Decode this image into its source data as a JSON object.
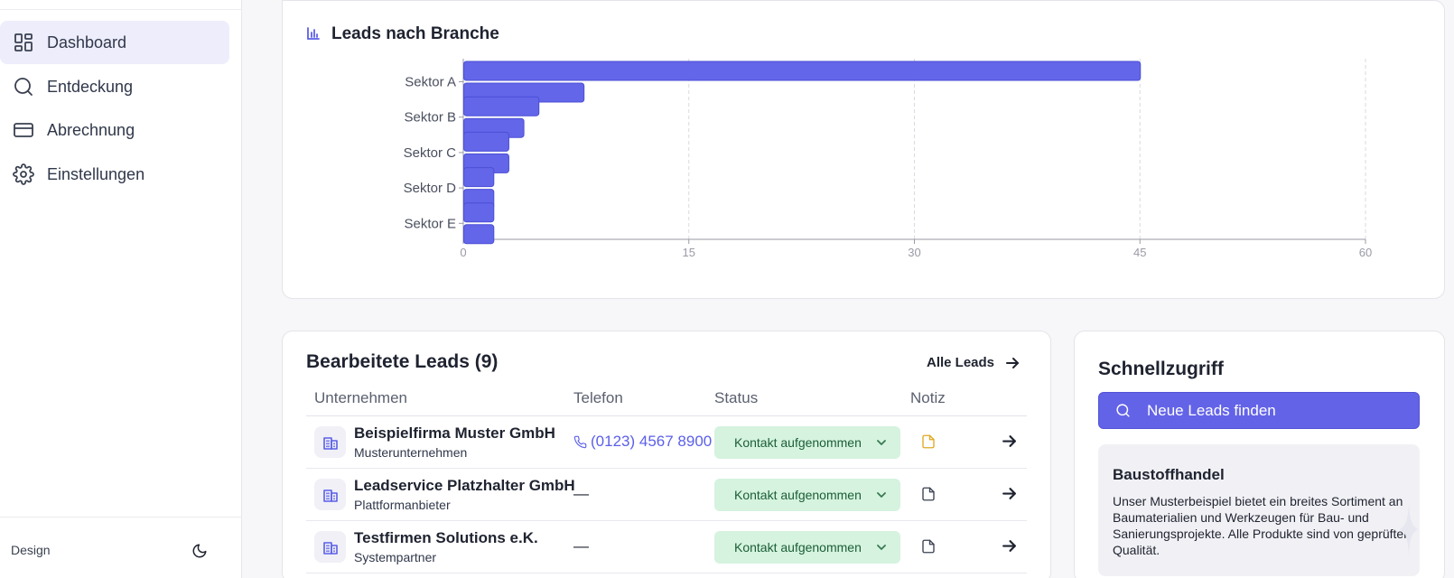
{
  "sidebar": {
    "items": [
      {
        "label": "Dashboard",
        "icon": "dashboard-icon",
        "active": true
      },
      {
        "label": "Entdeckung",
        "icon": "search-icon"
      },
      {
        "label": "Abrechnung",
        "icon": "credit-card-icon"
      },
      {
        "label": "Einstellungen",
        "icon": "gear-icon"
      }
    ],
    "design_label": "Design",
    "theme_icon": "moon-icon"
  },
  "colors": {
    "accent": "#6363e8",
    "bar": "#6366e8",
    "status_bg": "#d5f3df",
    "note_active": "#e0a820",
    "note_inactive": "#3a4050"
  },
  "chart_data": {
    "type": "bar",
    "orientation": "horizontal",
    "title": "Leads nach Branche",
    "categories": [
      "Sektor A",
      "Sektor B",
      "Sektor C",
      "Sektor D",
      "Sektor E"
    ],
    "series": [
      {
        "values": [
          45,
          5,
          3,
          2,
          2
        ]
      },
      {
        "values": [
          8,
          4,
          3,
          2,
          2
        ]
      }
    ],
    "xlim": [
      0,
      60
    ],
    "xticks": [
      "0",
      "15",
      "30",
      "45",
      "60"
    ],
    "grid": "vertical-dashed"
  },
  "leads": {
    "title": "Bearbeitete Leads (9)",
    "all_link": "Alle Leads",
    "columns": [
      "Unternehmen",
      "Telefon",
      "Status",
      "Notiz"
    ],
    "rows": [
      {
        "company": "Beispielfirma Muster GmbH",
        "category": "Musterunternehmen",
        "phone": "(0123) 4567 8900",
        "status": "Kontakt aufgenommen",
        "note": "active"
      },
      {
        "company": "Leadservice Platzhalter GmbH",
        "category": "Plattformanbieter",
        "phone": "—",
        "status": "Kontakt aufgenommen",
        "note": "empty"
      },
      {
        "company": "Testfirmen Solutions e.K.",
        "category": "Systempartner",
        "phone": "—",
        "status": "Kontakt aufgenommen",
        "note": "empty"
      }
    ]
  },
  "quick": {
    "title": "Schnellzugriff",
    "button": "Neue Leads finden",
    "info_title": "Baustoffhandel",
    "info_text": "Unser Musterbeispiel bietet ein breites Sortiment an Baumaterialien und Werkzeugen für Bau- und Sanierungsprojekte. Alle Produkte sind von geprüfter Qualität."
  }
}
